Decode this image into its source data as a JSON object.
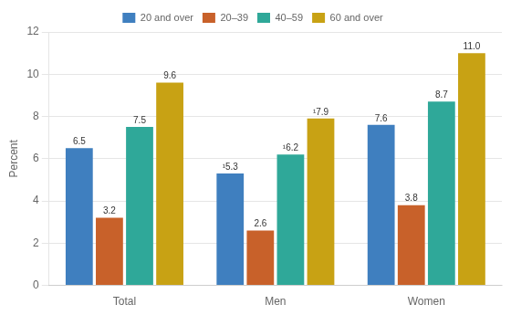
{
  "chart_data": {
    "type": "bar",
    "ylabel": "Percent",
    "categories": [
      "Total",
      "Men",
      "Women"
    ],
    "series": [
      {
        "name": "20 and over",
        "color": "#3F7FBF",
        "values": [
          6.5,
          5.3,
          7.6
        ],
        "value_labels": [
          "6.5",
          "¹5.3",
          "7.6"
        ]
      },
      {
        "name": "20–39",
        "color": "#C8612A",
        "values": [
          3.2,
          2.6,
          3.8
        ],
        "value_labels": [
          "3.2",
          "2.6",
          "3.8"
        ]
      },
      {
        "name": "40–59",
        "color": "#2FA899",
        "values": [
          7.5,
          6.2,
          8.7
        ],
        "value_labels": [
          "7.5",
          "¹6.2",
          "8.7"
        ]
      },
      {
        "name": "60 and over",
        "color": "#C8A214",
        "values": [
          9.6,
          7.9,
          11.0
        ],
        "value_labels": [
          "9.6",
          "¹7.9",
          "11.0"
        ]
      }
    ],
    "ylim": [
      0,
      12
    ],
    "yticks": [
      0,
      2,
      4,
      6,
      8,
      10,
      12
    ],
    "grid": true,
    "legend": "top",
    "data_labels": true
  }
}
